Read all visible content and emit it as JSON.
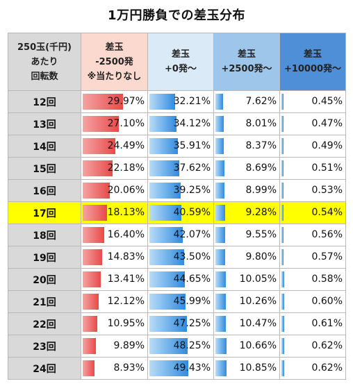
{
  "title": "1万円勝負での差玉分布",
  "chart_data": {
    "type": "table",
    "columns": [
      {
        "lines": [
          "250玉(千円)",
          "あたり",
          "回転数"
        ]
      },
      {
        "lines": [
          "差玉",
          "-2500発",
          "※当たりなし"
        ]
      },
      {
        "lines": [
          "差玉",
          "+0発～"
        ]
      },
      {
        "lines": [
          "差玉",
          "+2500発～"
        ]
      },
      {
        "lines": [
          "差玉",
          "+10000発～"
        ]
      }
    ],
    "highlight_row": "17回",
    "highlight_color": "#ffff00",
    "rows": [
      {
        "label": "12回",
        "values": [
          29.97,
          32.21,
          7.62,
          0.45
        ]
      },
      {
        "label": "13回",
        "values": [
          27.1,
          34.12,
          8.01,
          0.47
        ]
      },
      {
        "label": "14回",
        "values": [
          24.49,
          35.91,
          8.37,
          0.49
        ]
      },
      {
        "label": "15回",
        "values": [
          22.18,
          37.62,
          8.69,
          0.51
        ]
      },
      {
        "label": "16回",
        "values": [
          20.06,
          39.25,
          8.99,
          0.53
        ]
      },
      {
        "label": "17回",
        "values": [
          18.13,
          40.59,
          9.28,
          0.54
        ]
      },
      {
        "label": "18回",
        "values": [
          16.4,
          42.07,
          9.55,
          0.56
        ]
      },
      {
        "label": "19回",
        "values": [
          14.83,
          43.5,
          9.8,
          0.57
        ]
      },
      {
        "label": "20回",
        "values": [
          13.41,
          44.65,
          10.05,
          0.58
        ]
      },
      {
        "label": "21回",
        "values": [
          12.12,
          45.99,
          10.26,
          0.6
        ]
      },
      {
        "label": "22回",
        "values": [
          10.95,
          47.25,
          10.47,
          0.61
        ]
      },
      {
        "label": "23回",
        "values": [
          9.89,
          48.25,
          10.66,
          0.62
        ]
      },
      {
        "label": "24回",
        "values": [
          8.93,
          49.43,
          10.85,
          0.62
        ]
      }
    ],
    "unit": "%"
  }
}
